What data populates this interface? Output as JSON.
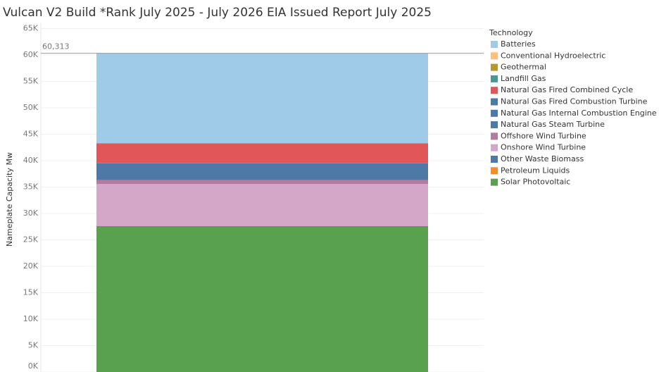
{
  "chart_data": {
    "type": "stacked_bar",
    "title": "Vulcan V2 Build *Rank July 2025 - July 2026 EIA Issued Report July 2025",
    "y_label": "Nameplate Capacity Mw",
    "legend_title": "Technology",
    "categories": [
      null
    ],
    "series": [
      {
        "name": "Batteries",
        "color": "#a0cbe8",
        "values": [
          17013
        ]
      },
      {
        "name": "Conventional Hydroelectric",
        "color": "#ffbe7d",
        "values": [
          0
        ]
      },
      {
        "name": "Geothermal",
        "color": "#b6992d",
        "values": [
          0
        ]
      },
      {
        "name": "Landfill Gas",
        "color": "#499894",
        "values": [
          0
        ]
      },
      {
        "name": "Natural Gas Fired Combined Cycle",
        "color": "#e15759",
        "values": [
          3800
        ]
      },
      {
        "name": "Natural Gas Fired Combustion Turbine",
        "color": "#4e79a7",
        "values": [
          3200
        ]
      },
      {
        "name": "Natural Gas Internal Combustion Engine",
        "color": "#4e79a7",
        "values": [
          0
        ]
      },
      {
        "name": "Natural Gas Steam Turbine",
        "color": "#4e79a7",
        "values": [
          0
        ]
      },
      {
        "name": "Offshore Wind Turbine",
        "color": "#b07aa1",
        "values": [
          700
        ]
      },
      {
        "name": "Onshore Wind Turbine",
        "color": "#d4a6c8",
        "values": [
          8000
        ]
      },
      {
        "name": "Other Waste Biomass",
        "color": "#4e79a7",
        "values": [
          0
        ]
      },
      {
        "name": "Petroleum Liquids",
        "color": "#f28e2b",
        "values": [
          0
        ]
      },
      {
        "name": "Solar Photovoltaic",
        "color": "#59a14f",
        "values": [
          27600
        ]
      }
    ],
    "reference_line": {
      "value": 60313,
      "label": "60,313"
    },
    "ylim": [
      0,
      66000
    ],
    "yticks": [
      {
        "value": 0,
        "label": "0K"
      },
      {
        "value": 5000,
        "label": "5K"
      },
      {
        "value": 10000,
        "label": "10K"
      },
      {
        "value": 15000,
        "label": "15K"
      },
      {
        "value": 20000,
        "label": "20K"
      },
      {
        "value": 25000,
        "label": "25K"
      },
      {
        "value": 30000,
        "label": "30K"
      },
      {
        "value": 35000,
        "label": "35K"
      },
      {
        "value": 40000,
        "label": "40K"
      },
      {
        "value": 45000,
        "label": "45K"
      },
      {
        "value": 50000,
        "label": "50K"
      },
      {
        "value": 55000,
        "label": "55K"
      },
      {
        "value": 60000,
        "label": "60K"
      },
      {
        "value": 65000,
        "label": "65K"
      }
    ],
    "grid": true
  }
}
